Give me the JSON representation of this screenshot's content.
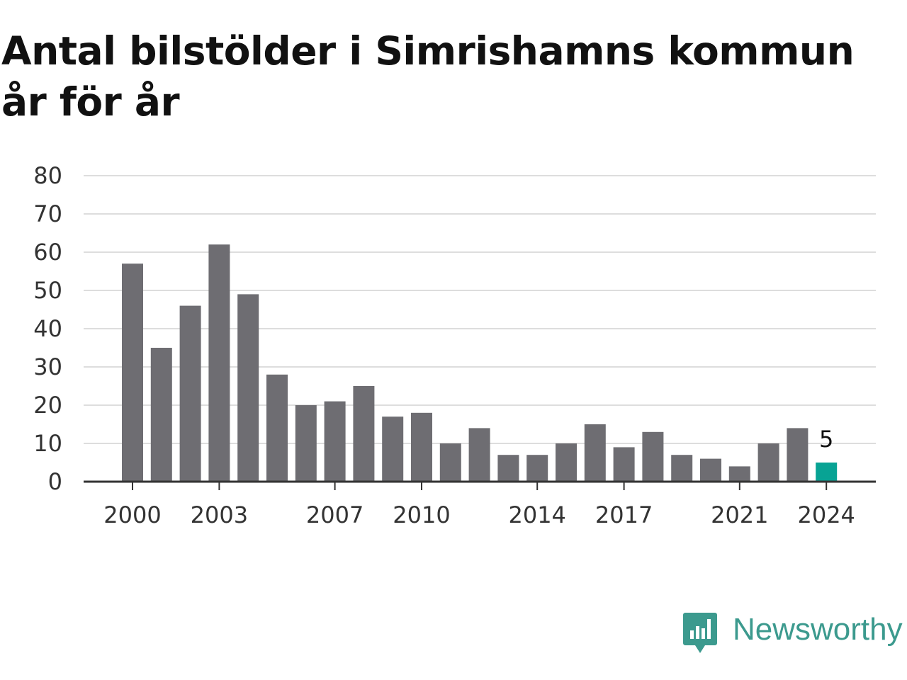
{
  "title_line1": "Antal bilstölder i Simrishamns kommun",
  "title_line2": "år för år",
  "brand": "Newsworthy",
  "colors": {
    "bar": "#6e6d72",
    "highlight": "#08a394",
    "grid": "#dddddd",
    "axis": "#333333",
    "text": "#333333",
    "brand": "#3c9a8e"
  },
  "chart_data": {
    "type": "bar",
    "title": "Antal bilstölder i Simrishamns kommun år för år",
    "xlabel": "",
    "ylabel": "",
    "ylim": [
      0,
      80
    ],
    "yticks": [
      0,
      10,
      20,
      30,
      40,
      50,
      60,
      70,
      80
    ],
    "xtick_labels": [
      "2000",
      "2003",
      "2007",
      "2010",
      "2014",
      "2017",
      "2021",
      "2024"
    ],
    "categories": [
      "2000",
      "2001",
      "2002",
      "2003",
      "2004",
      "2005",
      "2006",
      "2007",
      "2008",
      "2009",
      "2010",
      "2011",
      "2012",
      "2013",
      "2014",
      "2015",
      "2016",
      "2017",
      "2018",
      "2019",
      "2020",
      "2021",
      "2022",
      "2023",
      "2024"
    ],
    "values": [
      57,
      35,
      46,
      62,
      49,
      28,
      20,
      21,
      25,
      17,
      18,
      10,
      14,
      7,
      7,
      10,
      15,
      9,
      13,
      7,
      6,
      4,
      10,
      14,
      5
    ],
    "highlight": {
      "category": "2024",
      "label": "5"
    },
    "grid": true
  }
}
